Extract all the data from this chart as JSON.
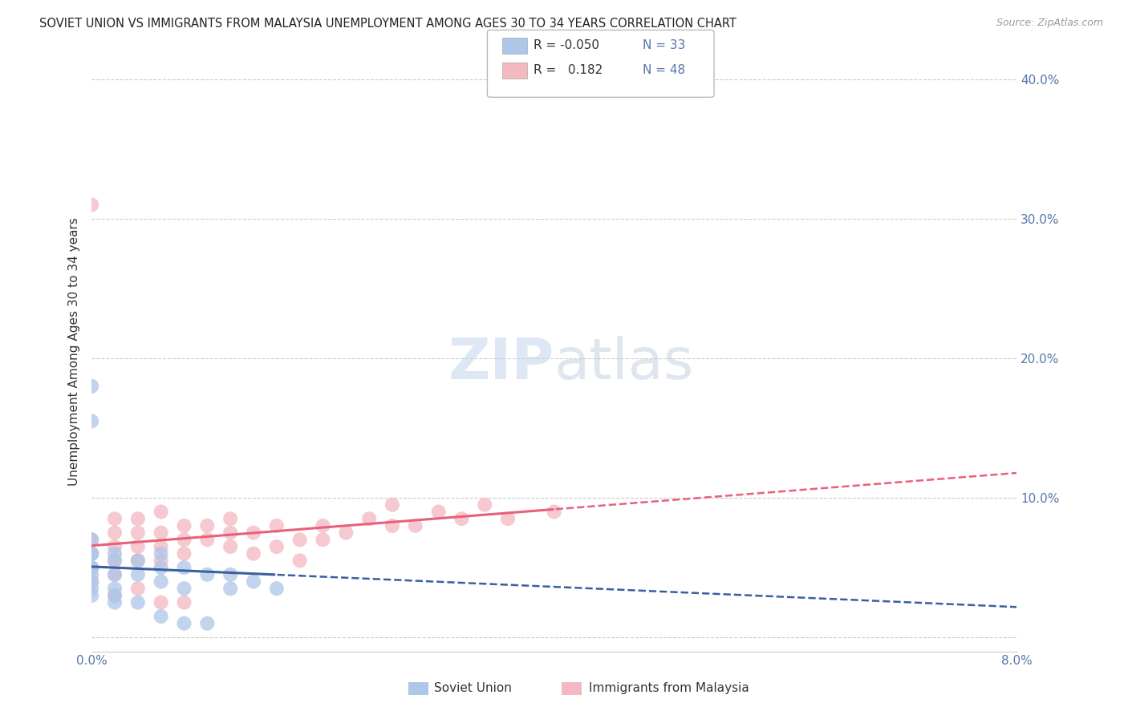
{
  "title": "SOVIET UNION VS IMMIGRANTS FROM MALAYSIA UNEMPLOYMENT AMONG AGES 30 TO 34 YEARS CORRELATION CHART",
  "source": "Source: ZipAtlas.com",
  "ylabel": "Unemployment Among Ages 30 to 34 years",
  "xlim": [
    0.0,
    0.08
  ],
  "ylim": [
    -0.01,
    0.42
  ],
  "xticks": [
    0.0,
    0.01,
    0.02,
    0.03,
    0.04,
    0.05,
    0.06,
    0.07,
    0.08
  ],
  "xticklabels": [
    "0.0%",
    "",
    "",
    "",
    "",
    "",
    "",
    "",
    "8.0%"
  ],
  "yticks_right": [
    0.0,
    0.1,
    0.2,
    0.3,
    0.4
  ],
  "yticklabels_right": [
    "",
    "10.0%",
    "20.0%",
    "30.0%",
    "40.0%"
  ],
  "soviet_color": "#aec6e8",
  "malaysia_color": "#f4b8c1",
  "soviet_line_color": "#3a5fa0",
  "malaysia_line_color": "#e8607a",
  "soviet_x": [
    0.0,
    0.0,
    0.0,
    0.0,
    0.0,
    0.0,
    0.0,
    0.0,
    0.002,
    0.002,
    0.002,
    0.002,
    0.004,
    0.004,
    0.006,
    0.006,
    0.006,
    0.008,
    0.008,
    0.01,
    0.012,
    0.012,
    0.014,
    0.016,
    0.0,
    0.0,
    0.0,
    0.002,
    0.002,
    0.004,
    0.006,
    0.008,
    0.01
  ],
  "soviet_y": [
    0.05,
    0.06,
    0.07,
    0.04,
    0.05,
    0.06,
    0.035,
    0.045,
    0.045,
    0.055,
    0.035,
    0.06,
    0.045,
    0.055,
    0.04,
    0.05,
    0.06,
    0.035,
    0.05,
    0.045,
    0.035,
    0.045,
    0.04,
    0.035,
    0.18,
    0.155,
    0.03,
    0.03,
    0.025,
    0.025,
    0.015,
    0.01,
    0.01
  ],
  "malaysia_x": [
    0.0,
    0.0,
    0.0,
    0.0,
    0.002,
    0.002,
    0.002,
    0.002,
    0.002,
    0.004,
    0.004,
    0.004,
    0.004,
    0.006,
    0.006,
    0.006,
    0.006,
    0.008,
    0.008,
    0.008,
    0.01,
    0.01,
    0.012,
    0.012,
    0.012,
    0.014,
    0.014,
    0.016,
    0.016,
    0.018,
    0.018,
    0.02,
    0.02,
    0.022,
    0.024,
    0.026,
    0.026,
    0.028,
    0.03,
    0.032,
    0.034,
    0.036,
    0.04,
    0.0,
    0.002,
    0.004,
    0.006,
    0.008
  ],
  "malaysia_y": [
    0.06,
    0.07,
    0.05,
    0.04,
    0.055,
    0.065,
    0.075,
    0.045,
    0.085,
    0.065,
    0.075,
    0.055,
    0.085,
    0.055,
    0.065,
    0.075,
    0.09,
    0.06,
    0.07,
    0.08,
    0.07,
    0.08,
    0.065,
    0.075,
    0.085,
    0.06,
    0.075,
    0.065,
    0.08,
    0.055,
    0.07,
    0.07,
    0.08,
    0.075,
    0.085,
    0.08,
    0.095,
    0.08,
    0.09,
    0.085,
    0.095,
    0.085,
    0.09,
    0.31,
    0.03,
    0.035,
    0.025,
    0.025
  ]
}
